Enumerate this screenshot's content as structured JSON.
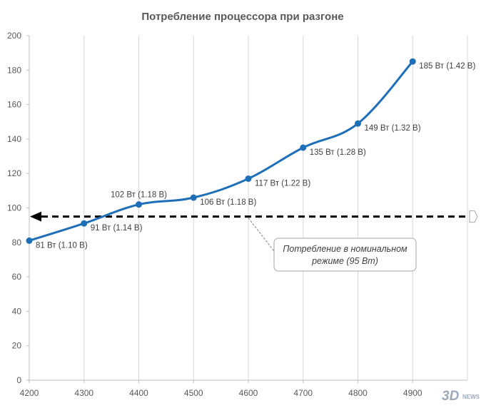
{
  "chart_data": {
    "type": "line",
    "title": "Потребление процессора при разгоне",
    "xlabel": "",
    "ylabel": "",
    "x": [
      4200,
      4300,
      4400,
      4500,
      4600,
      4700,
      4800,
      4900
    ],
    "xlim": [
      4200,
      5000
    ],
    "x_tick_labels": [
      "4200",
      "4300",
      "4400",
      "4500",
      "4600",
      "4700",
      "4800",
      "4900"
    ],
    "ylim": [
      0,
      200
    ],
    "y_ticks": [
      0,
      20,
      40,
      60,
      80,
      100,
      120,
      140,
      160,
      180,
      200
    ],
    "grid": "vertical",
    "series": [
      {
        "name": "",
        "color": "#1f6fb8",
        "values": [
          81,
          91,
          102,
          106,
          117,
          135,
          149,
          185
        ],
        "labels": [
          "81 Вт (1.10 В)",
          "91 Вт (1.14 В)",
          "102 Вт (1.18 В)",
          "106 Вт (1.18 В)",
          "117 Вт (1.22 В)",
          "135 Вт (1.28 В)",
          "149 Вт (1.32 В)",
          "185 Вт (1.42 В)"
        ]
      }
    ],
    "reference_line": {
      "y": 95,
      "style": "dashed",
      "color": "#000000",
      "annotation_lines": [
        "Потребление в номинальном",
        "режиме (95 Вт)"
      ],
      "annotation_anchor_x": 4600
    }
  },
  "watermark": {
    "text": "3DNEWS",
    "color": "#8a9bb0"
  }
}
